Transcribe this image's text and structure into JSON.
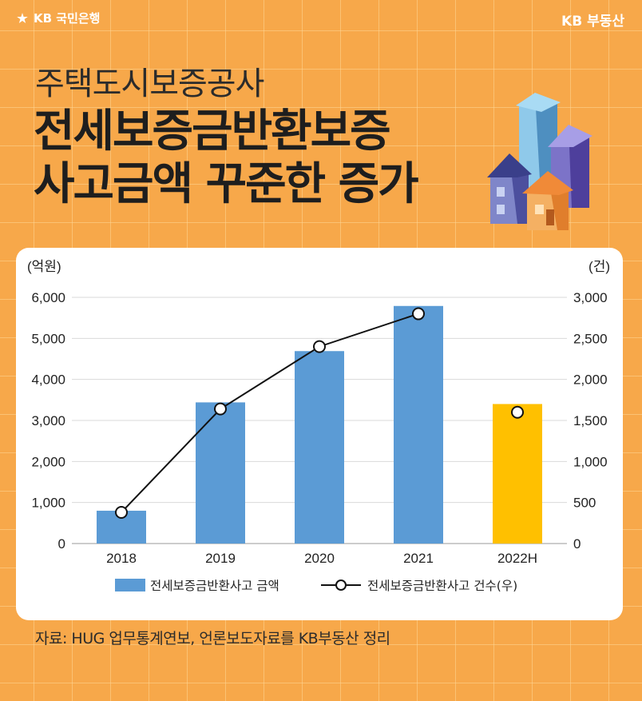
{
  "header": {
    "brand_left": "KB 국민은행",
    "brand_left_icon": "star-logo-icon",
    "brand_right": "KB 부동산"
  },
  "title": {
    "subtitle": "주택도시보증공사",
    "line1": "전세보증금반환보증",
    "line2": "사고금액 꾸준한 증가"
  },
  "illustration": {
    "icon": "houses-buildings-icon"
  },
  "colors": {
    "background": "#f7a84a",
    "bar": "#5b9bd5",
    "bar_highlight": "#ffc000",
    "line": "#111111"
  },
  "chart_data": {
    "type": "bar",
    "categories": [
      "2018",
      "2019",
      "2020",
      "2021",
      "2022H"
    ],
    "series": [
      {
        "name": "전세보증금반환사고 금액",
        "axis": "left",
        "type": "bar",
        "values": [
          800,
          3440,
          4690,
          5790,
          3400
        ]
      },
      {
        "name": "전세보증금반환사고 건수(우)",
        "axis": "right",
        "type": "line",
        "values": [
          380,
          1640,
          2400,
          2800,
          1600
        ]
      }
    ],
    "highlight_category": "2022H",
    "y_left": {
      "unit": "(억원)",
      "ylim": [
        0,
        6000
      ],
      "ticks": [
        "0",
        "1,000",
        "2,000",
        "3,000",
        "4,000",
        "5,000",
        "6,000"
      ]
    },
    "y_right": {
      "unit": "(건)",
      "ylim": [
        0,
        3000
      ],
      "ticks": [
        "0",
        "500",
        "1,000",
        "1,500",
        "2,000",
        "2,500",
        "3,000"
      ]
    },
    "grid": true,
    "legend_position": "bottom"
  },
  "source": "자료: HUG 업무통계연보, 언론보도자료를 KB부동산 정리"
}
